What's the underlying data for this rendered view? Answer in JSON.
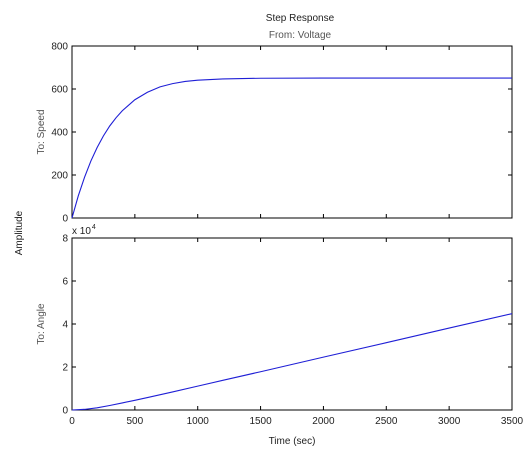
{
  "chart_data": {
    "type": "line",
    "title": "Step Response",
    "subtitle": "From: Voltage",
    "xlabel": "Time (sec)",
    "ylabel": "Amplitude",
    "xlim": [
      0,
      3500
    ],
    "xticks": [
      "0",
      "500",
      "1000",
      "1500",
      "2000",
      "2500",
      "3000",
      "3500"
    ],
    "grid": false,
    "panels": [
      {
        "ylabel": "To: Speed",
        "ylim": [
          0,
          800
        ],
        "yticks": [
          "0",
          "200",
          "400",
          "600",
          "800"
        ],
        "exponent": "",
        "series": [
          {
            "x": [
              0,
              50,
              100,
              150,
              200,
              250,
              300,
              350,
              400,
              500,
              600,
              700,
              800,
              900,
              1000,
              1200,
              1500,
              2000,
              2500,
              3000,
              3500
            ],
            "y": [
              0,
              103,
              190,
              265,
              328,
              382,
              428,
              466,
              499,
              550,
              585,
              610,
              625,
              635,
              641,
              647,
              650,
              651,
              651,
              651,
              651
            ]
          }
        ]
      },
      {
        "ylabel": "To: Angle",
        "ylim": [
          0,
          8
        ],
        "yticks": [
          "0",
          "2",
          "4",
          "6",
          "8"
        ],
        "exponent": "x 10",
        "exponent_power": "4",
        "series": [
          {
            "x": [
              0,
              100,
              200,
              300,
              400,
              500,
              600,
              800,
              1000,
              1200,
              1500,
              2000,
              2500,
              3000,
              3500
            ],
            "y": [
              0,
              0.03,
              0.1,
              0.21,
              0.33,
              0.45,
              0.58,
              0.84,
              1.11,
              1.38,
              1.78,
              2.46,
              3.13,
              3.81,
              4.48
            ]
          }
        ]
      }
    ]
  }
}
